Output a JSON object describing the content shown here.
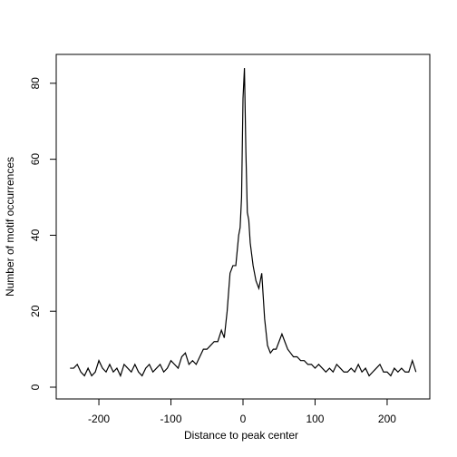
{
  "chart_data": {
    "type": "line",
    "x_label": "Distance to peak center",
    "y_label": "Number of motif occurrences",
    "x": [
      -240,
      -235,
      -230,
      -225,
      -220,
      -215,
      -210,
      -205,
      -200,
      -195,
      -190,
      -185,
      -180,
      -175,
      -170,
      -165,
      -160,
      -155,
      -150,
      -145,
      -140,
      -135,
      -130,
      -125,
      -120,
      -115,
      -110,
      -105,
      -100,
      -95,
      -90,
      -85,
      -80,
      -75,
      -70,
      -65,
      -60,
      -55,
      -50,
      -45,
      -40,
      -35,
      -30,
      -26,
      -22,
      -18,
      -14,
      -10,
      -6,
      -4,
      -2,
      0,
      2,
      4,
      6,
      8,
      10,
      14,
      18,
      22,
      26,
      30,
      34,
      38,
      42,
      46,
      50,
      54,
      58,
      62,
      66,
      70,
      75,
      80,
      85,
      90,
      95,
      100,
      105,
      110,
      115,
      120,
      125,
      130,
      135,
      140,
      145,
      150,
      155,
      160,
      165,
      170,
      175,
      180,
      185,
      190,
      195,
      200,
      205,
      210,
      215,
      220,
      225,
      230,
      235,
      240
    ],
    "series": [
      {
        "color": "#000000",
        "values": [
          5,
          5,
          6,
          4,
          3,
          5,
          3,
          4,
          7,
          5,
          4,
          6,
          4,
          5,
          3,
          6,
          5,
          4,
          6,
          4,
          3,
          5,
          6,
          4,
          5,
          6,
          4,
          5,
          7,
          6,
          5,
          8,
          9,
          6,
          7,
          6,
          8,
          10,
          10,
          11,
          12,
          12,
          15,
          13,
          20,
          30,
          32,
          32,
          40,
          42,
          50,
          76,
          84,
          62,
          46,
          44,
          38,
          32,
          28,
          26,
          30,
          18,
          11,
          9,
          10,
          10,
          12,
          14,
          12,
          10,
          9,
          8,
          8,
          7,
          7,
          6,
          6,
          5,
          6,
          5,
          4,
          5,
          4,
          6,
          5,
          4,
          4,
          5,
          4,
          6,
          4,
          5,
          3,
          4,
          5,
          6,
          4,
          4,
          3,
          5,
          4,
          5,
          4,
          4,
          7,
          4
        ]
      }
    ],
    "xlim": [
      -259.2,
      259.2
    ],
    "ylim": [
      -3.1,
      87.6
    ],
    "xticks": [
      -200,
      -100,
      0,
      100,
      200
    ],
    "yticks": [
      0,
      20,
      40,
      60,
      80
    ]
  }
}
